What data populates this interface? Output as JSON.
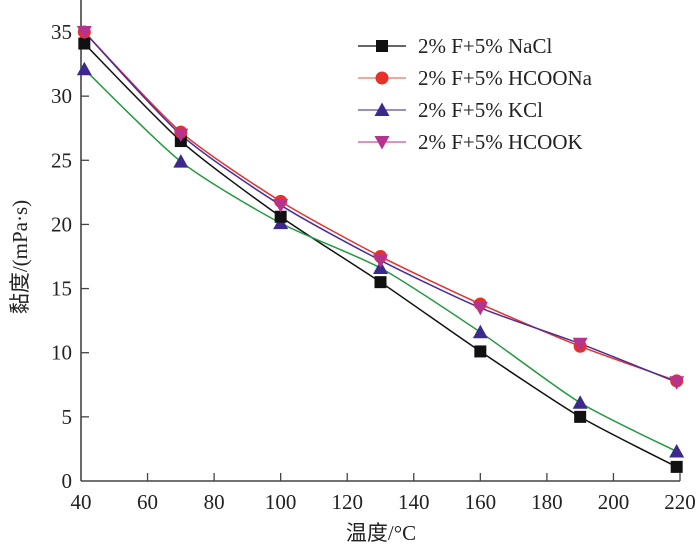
{
  "chart_data": {
    "type": "line",
    "title": "",
    "xlabel": "温度/°C",
    "ylabel": "黏度/(mPa·s)",
    "xlim": [
      40,
      220
    ],
    "ylim": [
      0,
      36
    ],
    "xticks": [
      40,
      60,
      80,
      100,
      120,
      140,
      160,
      180,
      200,
      220
    ],
    "yticks": [
      0,
      5,
      10,
      15,
      20,
      25,
      30,
      35
    ],
    "grid": false,
    "legend_position": "top-right",
    "x": [
      41,
      70,
      100,
      130,
      160,
      190,
      219
    ],
    "series": [
      {
        "name": "2% F+5% NaCl",
        "marker": "square",
        "marker_color": "#111111",
        "line_color": "#111111",
        "values": [
          34.1,
          26.5,
          20.6,
          15.5,
          10.1,
          5.0,
          1.1
        ]
      },
      {
        "name": "2% F+5% HCOONa",
        "marker": "circle",
        "marker_color": "#e8302a",
        "line_color": "#e8302a",
        "values": [
          35.0,
          27.2,
          21.8,
          17.5,
          13.8,
          10.5,
          7.8
        ]
      },
      {
        "name": "2% F+5% KCl",
        "marker": "triangle-up",
        "marker_color": "#3b2a8c",
        "line_color": "#1e9a3a",
        "values": [
          32.1,
          24.9,
          20.1,
          16.6,
          11.6,
          6.1,
          2.3
        ]
      },
      {
        "name": "2% F+5% HCOOK",
        "marker": "triangle-down",
        "marker_color": "#b3338f",
        "line_color": "#4a2d9a",
        "values": [
          35.0,
          27.0,
          21.5,
          17.2,
          13.5,
          10.7,
          7.7
        ]
      }
    ],
    "legend": {
      "entries": [
        {
          "label": "2% F+5% NaCl",
          "marker": "square",
          "marker_color": "#111111",
          "line_color": "#333333"
        },
        {
          "label": "2% F+5% HCOONa",
          "marker": "circle",
          "marker_color": "#e8302a",
          "line_color": "#f08a70"
        },
        {
          "label": "2% F+5% KCl",
          "marker": "triangle-up",
          "marker_color": "#3b2a8c",
          "line_color": "#7a68b0"
        },
        {
          "label": "2% F+5% HCOOK",
          "marker": "triangle-down",
          "marker_color": "#b3338f",
          "line_color": "#d66bb4"
        }
      ]
    }
  }
}
